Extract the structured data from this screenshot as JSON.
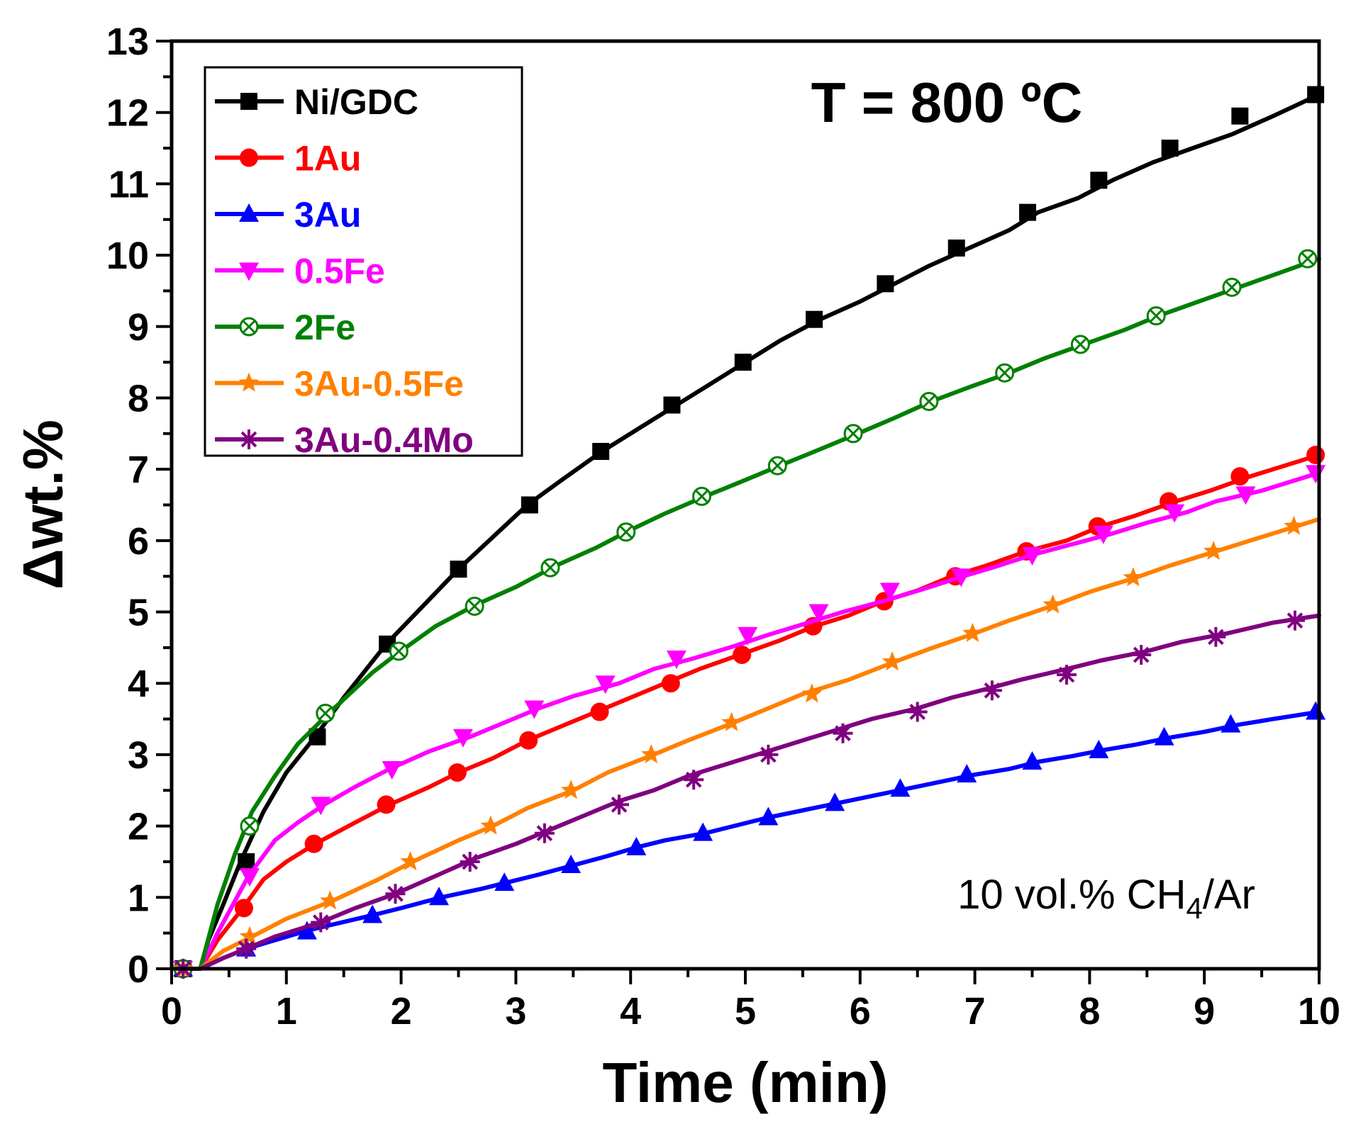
{
  "chart_data": {
    "type": "line",
    "xlabel": "Time (min)",
    "ylabel": "Δwt.%",
    "xlim": [
      0,
      10
    ],
    "ylim": [
      0,
      13
    ],
    "xticks": [
      "0",
      "1",
      "2",
      "3",
      "4",
      "5",
      "6",
      "7",
      "8",
      "9",
      "10"
    ],
    "yticks": [
      "0",
      "1",
      "2",
      "3",
      "4",
      "5",
      "6",
      "7",
      "8",
      "9",
      "10",
      "11",
      "12",
      "13"
    ],
    "grid": false,
    "legend_position": "top-left",
    "annotations": {
      "temperature": "T = 800 ºC",
      "gas_prefix": "10 vol.% CH",
      "gas_subscript": "4",
      "gas_suffix": "/Ar"
    },
    "series": [
      {
        "name": "Ni/GDC",
        "color": "#000000",
        "marker": "square",
        "x": [
          0.05,
          0.25,
          0.32,
          0.45,
          0.6,
          0.8,
          1.0,
          1.25,
          1.5,
          1.87,
          2.2,
          2.5,
          2.8,
          3.1,
          3.4,
          3.75,
          4.1,
          4.4,
          4.7,
          5.0,
          5.3,
          5.65,
          6.0,
          6.3,
          6.6,
          6.95,
          7.3,
          7.55,
          7.9,
          8.2,
          8.55,
          8.9,
          9.25,
          9.6,
          10.0
        ],
        "y": [
          0.0,
          0.0,
          0.4,
          0.9,
          1.5,
          2.2,
          2.75,
          3.25,
          3.8,
          4.55,
          5.1,
          5.6,
          6.05,
          6.5,
          6.85,
          7.25,
          7.6,
          7.9,
          8.2,
          8.5,
          8.8,
          9.1,
          9.35,
          9.6,
          9.85,
          10.1,
          10.35,
          10.6,
          10.8,
          11.05,
          11.3,
          11.5,
          11.7,
          11.95,
          12.25
        ],
        "markers_x": [
          0.1,
          0.65,
          1.27,
          1.88,
          2.5,
          3.12,
          3.74,
          4.36,
          4.98,
          5.6,
          6.22,
          6.84,
          7.46,
          8.08,
          8.7,
          9.31,
          9.97
        ],
        "markers_y": [
          0.0,
          1.5,
          3.25,
          4.55,
          5.6,
          6.5,
          7.25,
          7.9,
          8.5,
          9.1,
          9.6,
          10.1,
          10.6,
          11.05,
          11.5,
          11.95,
          12.25
        ]
      },
      {
        "name": "1Au",
        "color": "#ff0000",
        "marker": "circle",
        "x": [
          0.05,
          0.25,
          0.4,
          0.62,
          0.8,
          1.0,
          1.25,
          1.6,
          1.9,
          2.25,
          2.5,
          2.8,
          3.1,
          3.4,
          3.7,
          4.0,
          4.3,
          4.6,
          4.95,
          5.3,
          5.6,
          5.9,
          6.2,
          6.5,
          6.8,
          7.1,
          7.45,
          7.8,
          8.1,
          8.4,
          8.75,
          9.05,
          9.4,
          9.7,
          10.0
        ],
        "y": [
          0.0,
          0.0,
          0.4,
          0.85,
          1.25,
          1.5,
          1.75,
          2.05,
          2.3,
          2.55,
          2.75,
          2.95,
          3.2,
          3.4,
          3.6,
          3.8,
          4.0,
          4.2,
          4.4,
          4.6,
          4.8,
          4.95,
          5.15,
          5.3,
          5.5,
          5.65,
          5.85,
          6.0,
          6.2,
          6.35,
          6.55,
          6.7,
          6.9,
          7.05,
          7.2
        ],
        "markers_x": [
          0.1,
          0.63,
          1.24,
          1.87,
          2.49,
          3.11,
          3.73,
          4.35,
          4.97,
          5.59,
          6.21,
          6.83,
          7.45,
          8.07,
          8.69,
          9.31,
          9.97
        ],
        "markers_y": [
          0.0,
          0.85,
          1.75,
          2.3,
          2.75,
          3.2,
          3.6,
          4.0,
          4.4,
          4.8,
          5.15,
          5.5,
          5.85,
          6.2,
          6.55,
          6.9,
          7.2
        ]
      },
      {
        "name": "3Au",
        "color": "#0000ff",
        "marker": "triangle-up",
        "x": [
          0.05,
          0.25,
          0.45,
          0.65,
          0.9,
          1.15,
          1.35,
          1.75,
          2.0,
          2.35,
          2.7,
          2.9,
          3.2,
          3.5,
          3.8,
          4.05,
          4.3,
          4.65,
          4.9,
          5.2,
          5.5,
          5.8,
          6.1,
          6.4,
          6.7,
          7.0,
          7.3,
          7.55,
          7.85,
          8.1,
          8.4,
          8.7,
          9.0,
          9.3,
          9.6,
          10.0
        ],
        "y": [
          0.0,
          0.0,
          0.15,
          0.28,
          0.4,
          0.52,
          0.6,
          0.75,
          0.85,
          1.0,
          1.12,
          1.2,
          1.32,
          1.45,
          1.58,
          1.7,
          1.8,
          1.9,
          2.0,
          2.12,
          2.22,
          2.32,
          2.42,
          2.52,
          2.62,
          2.72,
          2.8,
          2.9,
          2.98,
          3.06,
          3.14,
          3.24,
          3.32,
          3.42,
          3.5,
          3.6
        ],
        "markers_x": [
          0.1,
          0.65,
          1.18,
          1.75,
          2.33,
          2.9,
          3.48,
          4.05,
          4.63,
          5.2,
          5.78,
          6.35,
          6.93,
          7.5,
          8.08,
          8.65,
          9.23,
          9.97
        ],
        "markers_y": [
          0.0,
          0.28,
          0.52,
          0.75,
          1.0,
          1.2,
          1.45,
          1.7,
          1.9,
          2.12,
          2.32,
          2.52,
          2.72,
          2.9,
          3.06,
          3.24,
          3.42,
          3.6
        ]
      },
      {
        "name": "0.5Fe",
        "color": "#ff00ff",
        "marker": "triangle-down",
        "x": [
          0.05,
          0.25,
          0.4,
          0.67,
          0.9,
          1.1,
          1.33,
          1.6,
          1.9,
          2.25,
          2.6,
          2.9,
          3.2,
          3.5,
          3.9,
          4.2,
          4.55,
          4.9,
          5.2,
          5.55,
          5.85,
          6.2,
          6.55,
          6.9,
          7.15,
          7.5,
          7.85,
          8.2,
          8.5,
          8.85,
          9.1,
          9.5,
          10.0
        ],
        "y": [
          0.0,
          0.0,
          0.5,
          1.3,
          1.8,
          2.05,
          2.3,
          2.55,
          2.8,
          3.05,
          3.25,
          3.45,
          3.65,
          3.82,
          4.0,
          4.2,
          4.35,
          4.52,
          4.68,
          4.85,
          5.0,
          5.15,
          5.32,
          5.5,
          5.62,
          5.8,
          5.95,
          6.1,
          6.25,
          6.4,
          6.55,
          6.7,
          6.95
        ],
        "markers_x": [
          0.1,
          0.68,
          1.3,
          1.92,
          2.54,
          3.16,
          3.78,
          4.4,
          5.02,
          5.64,
          6.26,
          6.88,
          7.5,
          8.12,
          8.74,
          9.36,
          9.97
        ],
        "markers_y": [
          0.0,
          1.3,
          2.3,
          2.8,
          3.25,
          3.65,
          4.0,
          4.35,
          4.68,
          5.0,
          5.3,
          5.5,
          5.8,
          6.1,
          6.4,
          6.65,
          6.95
        ]
      },
      {
        "name": "2Fe",
        "color": "#008000",
        "marker": "circle-x",
        "x": [
          0.05,
          0.25,
          0.4,
          0.55,
          0.7,
          0.9,
          1.1,
          1.35,
          1.55,
          1.75,
          1.97,
          2.3,
          2.65,
          3.0,
          3.35,
          3.7,
          4.0,
          4.3,
          4.65,
          5.0,
          5.3,
          5.65,
          5.98,
          6.3,
          6.62,
          6.95,
          7.3,
          7.6,
          7.95,
          8.3,
          8.6,
          8.95,
          9.3,
          9.65,
          10.0
        ],
        "y": [
          0.0,
          0.0,
          0.9,
          1.6,
          2.2,
          2.7,
          3.15,
          3.55,
          3.85,
          4.15,
          4.42,
          4.8,
          5.1,
          5.35,
          5.65,
          5.9,
          6.15,
          6.38,
          6.62,
          6.85,
          7.05,
          7.28,
          7.5,
          7.72,
          7.95,
          8.15,
          8.35,
          8.55,
          8.75,
          8.95,
          9.15,
          9.35,
          9.55,
          9.75,
          9.95
        ],
        "markers_x": [
          0.1,
          0.68,
          1.34,
          1.98,
          2.64,
          3.3,
          3.96,
          4.62,
          5.28,
          5.94,
          6.6,
          7.26,
          7.92,
          8.58,
          9.24,
          9.9
        ],
        "markers_y": [
          0.0,
          2.0,
          3.58,
          4.45,
          5.08,
          5.62,
          6.12,
          6.62,
          7.05,
          7.5,
          7.95,
          8.35,
          8.75,
          9.15,
          9.55,
          9.95
        ]
      },
      {
        "name": "3Au-0.5Fe",
        "color": "#ff8000",
        "marker": "star",
        "x": [
          0.05,
          0.25,
          0.45,
          0.7,
          1.0,
          1.4,
          1.8,
          2.1,
          2.5,
          2.8,
          3.1,
          3.5,
          3.8,
          4.2,
          4.5,
          4.9,
          5.2,
          5.5,
          5.9,
          6.3,
          6.6,
          7.0,
          7.3,
          7.7,
          8.0,
          8.4,
          8.7,
          9.1,
          9.4,
          9.8,
          10.0
        ],
        "y": [
          0.0,
          0.0,
          0.25,
          0.45,
          0.7,
          0.95,
          1.25,
          1.5,
          1.8,
          2.0,
          2.25,
          2.5,
          2.75,
          3.0,
          3.2,
          3.45,
          3.65,
          3.85,
          4.05,
          4.3,
          4.48,
          4.7,
          4.88,
          5.1,
          5.28,
          5.48,
          5.65,
          5.85,
          6.0,
          6.2,
          6.3
        ],
        "markers_x": [
          0.1,
          0.68,
          1.38,
          2.08,
          2.78,
          3.48,
          4.18,
          4.88,
          5.58,
          6.28,
          6.98,
          7.68,
          8.38,
          9.08,
          9.78
        ],
        "markers_y": [
          0.0,
          0.45,
          0.95,
          1.5,
          2.0,
          2.5,
          3.0,
          3.45,
          3.85,
          4.3,
          4.7,
          5.1,
          5.48,
          5.85,
          6.2
        ]
      },
      {
        "name": "3Au-0.4Mo",
        "color": "#800080",
        "marker": "asterisk",
        "x": [
          0.05,
          0.25,
          0.45,
          0.65,
          0.9,
          1.3,
          1.6,
          1.95,
          2.3,
          2.65,
          3.0,
          3.3,
          3.6,
          3.9,
          4.2,
          4.5,
          4.9,
          5.2,
          5.5,
          5.8,
          6.1,
          6.5,
          6.8,
          7.1,
          7.4,
          7.8,
          8.1,
          8.5,
          8.8,
          9.2,
          9.6,
          10.0
        ],
        "y": [
          0.0,
          0.0,
          0.15,
          0.28,
          0.45,
          0.65,
          0.85,
          1.05,
          1.3,
          1.55,
          1.75,
          1.95,
          2.15,
          2.35,
          2.5,
          2.7,
          2.9,
          3.05,
          3.2,
          3.35,
          3.5,
          3.65,
          3.8,
          3.92,
          4.05,
          4.2,
          4.32,
          4.45,
          4.58,
          4.7,
          4.85,
          4.95
        ],
        "markers_x": [
          0.1,
          0.65,
          1.3,
          1.95,
          2.6,
          3.25,
          3.9,
          4.55,
          5.2,
          5.85,
          6.5,
          7.15,
          7.8,
          8.45,
          9.1,
          9.79
        ],
        "markers_y": [
          0.0,
          0.28,
          0.65,
          1.05,
          1.5,
          1.9,
          2.3,
          2.65,
          3.0,
          3.3,
          3.6,
          3.9,
          4.12,
          4.4,
          4.65,
          4.88
        ]
      }
    ]
  }
}
